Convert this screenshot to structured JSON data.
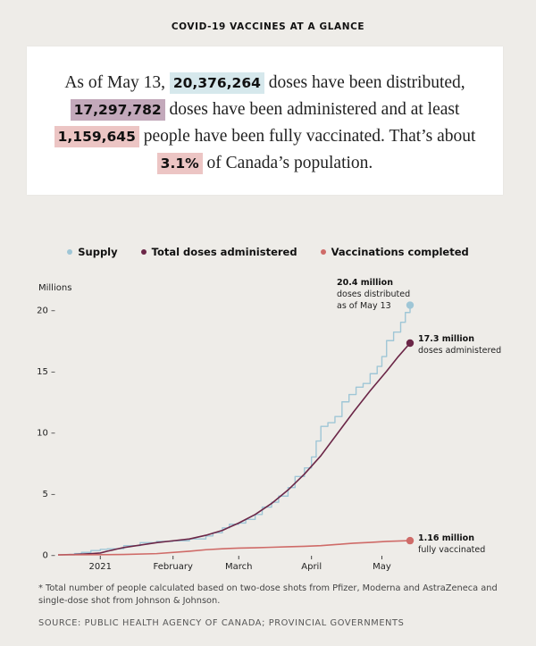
{
  "header": {
    "title": "COVID-19 VACCINES AT A GLANCE"
  },
  "summary": {
    "part1": "As of May 13, ",
    "distributed": "20,376,264",
    "part2": " doses have been distributed,",
    "administered": "17,297,782",
    "part3": " doses have been administered and at least",
    "vaccinated": "1,159,645",
    "part4": " people have been fully vaccinated. That’s about",
    "percent": "3.1%",
    "part5": " of Canada’s population."
  },
  "colors": {
    "supply": "#9fc6d6",
    "administered": "#6b2647",
    "completed": "#cf6b68"
  },
  "chart_data": {
    "type": "line",
    "title": "",
    "ylabel": "Millions",
    "xlabel": "",
    "ylim": [
      0,
      20.5
    ],
    "yticks": [
      0,
      5,
      10,
      15,
      20
    ],
    "ytick_labels": [
      "0 –",
      "5 –",
      "10 –",
      "15 –",
      "20 –"
    ],
    "xticks": [
      "2021",
      "February",
      "March",
      "April",
      "May"
    ],
    "x_units": "days since Dec 14, 2020",
    "xtick_days": [
      18,
      49,
      77,
      108,
      138
    ],
    "xlim": [
      0,
      150
    ],
    "legend": [
      "Supply",
      "Total doses administered",
      "Vaccinations completed"
    ],
    "legend_position": "top",
    "series": [
      {
        "name": "Supply",
        "key": "supply",
        "x": [
          0,
          7,
          10,
          14,
          18,
          21,
          28,
          35,
          42,
          49,
          56,
          63,
          66,
          70,
          73,
          77,
          80,
          84,
          87,
          91,
          94,
          98,
          101,
          105,
          108,
          110,
          112,
          115,
          118,
          121,
          124,
          127,
          130,
          133,
          136,
          138,
          140,
          143,
          146,
          148,
          150
        ],
        "y": [
          0,
          0.1,
          0.2,
          0.35,
          0.45,
          0.5,
          0.75,
          1.0,
          1.1,
          1.15,
          1.3,
          1.55,
          1.8,
          2.2,
          2.5,
          2.6,
          2.9,
          3.3,
          3.9,
          4.3,
          4.8,
          5.5,
          6.4,
          7.1,
          8.0,
          9.3,
          10.5,
          10.8,
          11.3,
          12.5,
          13.1,
          13.7,
          14.0,
          14.8,
          15.4,
          16.2,
          17.5,
          18.2,
          19.0,
          19.8,
          20.4
        ]
      },
      {
        "name": "Total doses administered",
        "key": "administered",
        "x": [
          0,
          7,
          14,
          18,
          21,
          28,
          35,
          42,
          49,
          56,
          63,
          70,
          77,
          84,
          91,
          98,
          105,
          112,
          119,
          126,
          133,
          140,
          145,
          150
        ],
        "y": [
          0,
          0.03,
          0.1,
          0.15,
          0.3,
          0.6,
          0.8,
          1.0,
          1.15,
          1.3,
          1.6,
          2.0,
          2.6,
          3.3,
          4.2,
          5.3,
          6.6,
          8.1,
          9.9,
          11.7,
          13.4,
          15.0,
          16.2,
          17.3
        ]
      },
      {
        "name": "Vaccinations completed",
        "key": "completed",
        "x": [
          0,
          14,
          28,
          42,
          56,
          63,
          70,
          77,
          84,
          91,
          98,
          105,
          112,
          119,
          126,
          133,
          140,
          150
        ],
        "y": [
          0,
          0.01,
          0.03,
          0.1,
          0.3,
          0.42,
          0.5,
          0.55,
          0.58,
          0.62,
          0.66,
          0.7,
          0.75,
          0.85,
          0.95,
          1.02,
          1.1,
          1.16
        ]
      }
    ],
    "annotations": {
      "supply": {
        "bold": "20.4 million",
        "lines": [
          "doses distributed",
          "as of May 13"
        ]
      },
      "administered": {
        "bold": "17.3 million",
        "lines": [
          "doses administered"
        ]
      },
      "completed": {
        "bold": "1.16 million",
        "lines": [
          "fully vaccinated"
        ]
      }
    }
  },
  "footnote": "* Total number of people calculated based on two-dose shots from Pfizer, Moderna and AstraZeneca and single-dose shot from Johnson & Johnson.",
  "source": "SOURCE: PUBLIC HEALTH AGENCY OF CANADA; PROVINCIAL GOVERNMENTS"
}
